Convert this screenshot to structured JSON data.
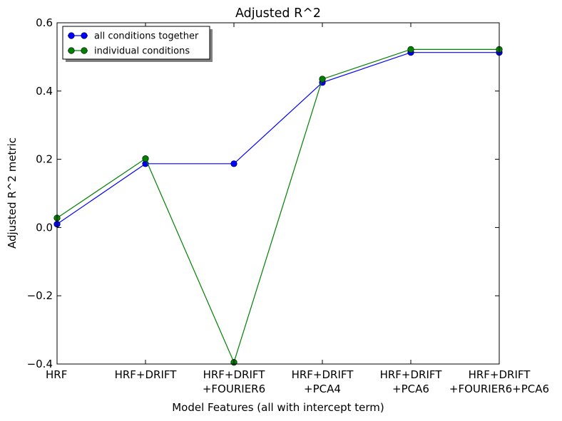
{
  "chart_data": {
    "type": "line",
    "title": "Adjusted R^2",
    "xlabel": "Model Features (all with intercept term)",
    "ylabel": "Adjusted R^2 metric",
    "categories": [
      [
        "HRF"
      ],
      [
        "HRF+DRIFT"
      ],
      [
        "HRF+DRIFT",
        "+FOURIER6"
      ],
      [
        "HRF+DRIFT",
        "+PCA4"
      ],
      [
        "HRF+DRIFT",
        "+PCA6"
      ],
      [
        "HRF+DRIFT",
        "+FOURIER6+PCA6"
      ]
    ],
    "ylim": [
      -0.4,
      0.6
    ],
    "yticks": [
      -0.4,
      -0.2,
      0.0,
      0.2,
      0.4,
      0.6
    ],
    "ytick_labels": [
      "−0.4",
      "−0.2",
      "0.0",
      "0.2",
      "0.4",
      "0.6"
    ],
    "grid": false,
    "legend_position": "top-left",
    "series": [
      {
        "name": "all conditions together",
        "color": "#0000ff",
        "values": [
          0.01,
          0.187,
          0.187,
          0.425,
          0.513,
          0.513
        ]
      },
      {
        "name": "individual conditions",
        "color": "#008000",
        "values": [
          0.028,
          0.202,
          -0.395,
          0.435,
          0.522,
          0.522
        ]
      }
    ]
  }
}
